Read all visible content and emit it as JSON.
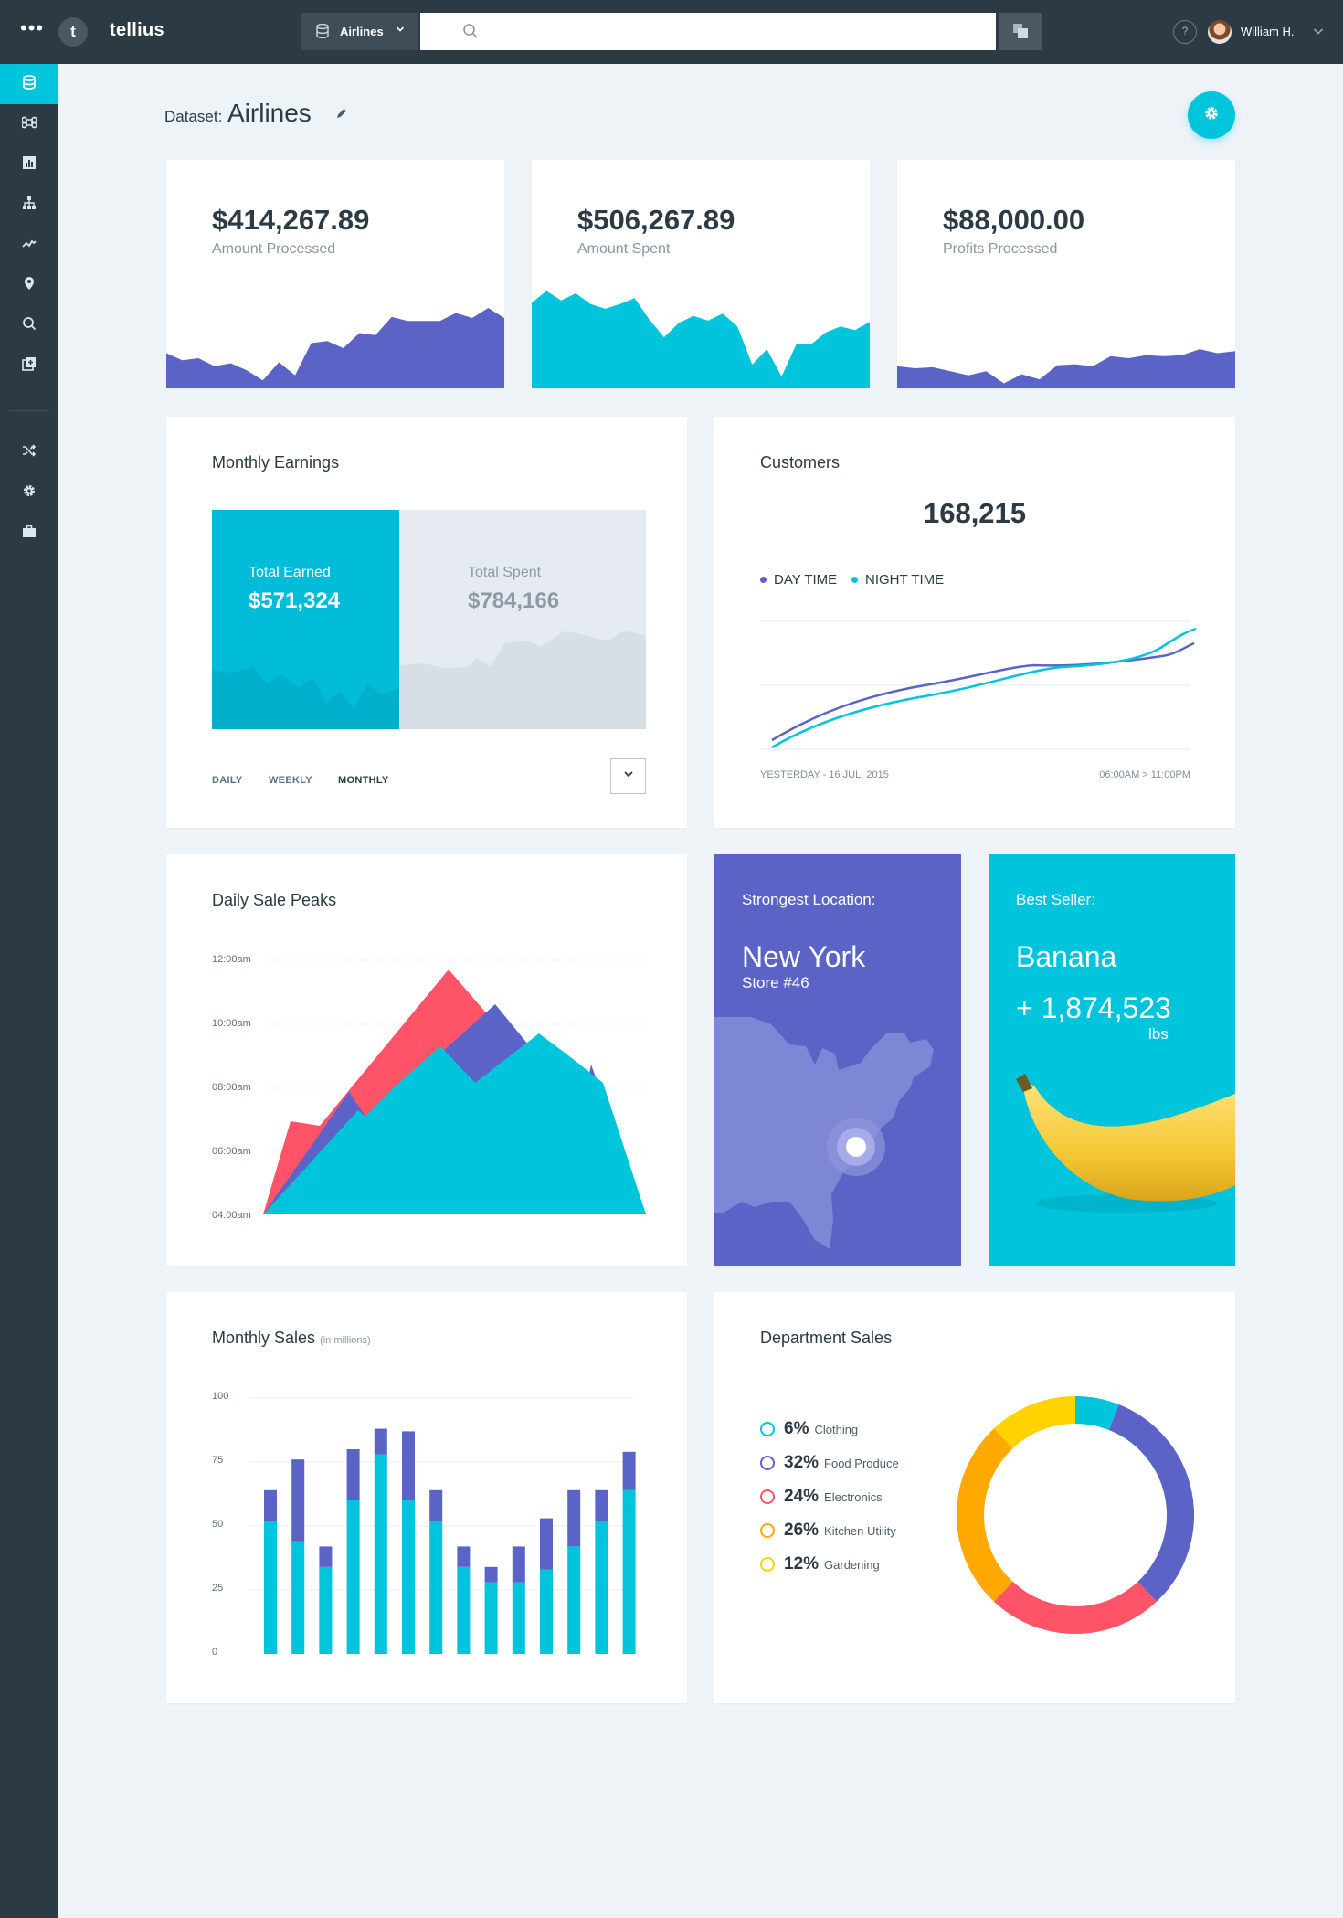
{
  "app": {
    "logo_letter": "t",
    "name": "tellius"
  },
  "topbar": {
    "menu_label": "•••",
    "dataset_select": "Airlines",
    "search_placeholder": "",
    "help_label": "?",
    "user_name": "William H."
  },
  "sidebar": {
    "items": [
      {
        "icon": "database-icon",
        "active": true
      },
      {
        "icon": "command-icon"
      },
      {
        "icon": "bar-chart-icon"
      },
      {
        "icon": "hierarchy-icon"
      },
      {
        "icon": "trend-icon"
      },
      {
        "icon": "location-pin-icon"
      },
      {
        "icon": "search-icon"
      },
      {
        "icon": "add-box-icon"
      },
      {
        "icon": "shuffle-icon"
      },
      {
        "icon": "gear-icon"
      },
      {
        "icon": "briefcase-icon"
      }
    ]
  },
  "header": {
    "dataset_label": "Dataset:",
    "dataset_name": "Airlines"
  },
  "kpis": [
    {
      "value": "$414,267.89",
      "label": "Amount Processed",
      "color": "#5b63c7",
      "trend": [
        0.35,
        0.28,
        0.3,
        0.22,
        0.25,
        0.18,
        0.08,
        0.26,
        0.13,
        0.45,
        0.47,
        0.4,
        0.55,
        0.53,
        0.71,
        0.67,
        0.67,
        0.67,
        0.75,
        0.7,
        0.8,
        0.7
      ]
    },
    {
      "value": "$506,267.89",
      "label": "Amount Spent",
      "color": "#00c3dc",
      "trend": [
        0.72,
        0.82,
        0.74,
        0.8,
        0.71,
        0.67,
        0.71,
        0.76,
        0.58,
        0.43,
        0.55,
        0.61,
        0.57,
        0.63,
        0.52,
        0.2,
        0.33,
        0.1,
        0.37,
        0.37,
        0.47,
        0.52,
        0.49,
        0.56
      ]
    },
    {
      "value": "$88,000.00",
      "label": "Profits Processed",
      "color": "#5b63c7",
      "trend": [
        0.22,
        0.2,
        0.21,
        0.17,
        0.13,
        0.17,
        0.05,
        0.14,
        0.09,
        0.23,
        0.24,
        0.22,
        0.32,
        0.3,
        0.33,
        0.32,
        0.33,
        0.39,
        0.35,
        0.37
      ]
    }
  ],
  "monthly_earnings": {
    "title": "Monthly Earnings",
    "earned_label": "Total Earned",
    "earned_value": "$571,324",
    "spent_label": "Total Spent",
    "spent_value": "$784,166",
    "tabs": [
      "DAILY",
      "WEEKLY",
      "MONTHLY"
    ],
    "active_tab": "MONTHLY"
  },
  "customers": {
    "title": "Customers",
    "total": "168,215",
    "legend": [
      {
        "name": "DAY TIME",
        "color": "#5b63c7"
      },
      {
        "name": "NIGHT TIME",
        "color": "#00c3dc"
      }
    ],
    "range_left": "YESTERDAY - 16 JUL, 2015",
    "range_right": "06:00AM > 11:00PM"
  },
  "daily_sale_peaks": {
    "title": "Daily Sale Peaks",
    "y_ticks": [
      "12:00am",
      "10:00am",
      "08:00am",
      "06:00am",
      "04:00am"
    ],
    "colors": [
      "#ff5368",
      "#5b63c7",
      "#00c3dc"
    ]
  },
  "strongest_location": {
    "title": "Strongest Location:",
    "city": "New York",
    "store": "Store #46",
    "color": "#5b63c7"
  },
  "best_seller": {
    "title": "Best Seller:",
    "product": "Banana",
    "quantity": "+ 1,874,523",
    "unit": "lbs",
    "color": "#00c3dc"
  },
  "monthly_sales": {
    "title": "Monthly Sales",
    "units": "(in millions)",
    "chart_data": {
      "type": "bar",
      "ylim": [
        0,
        100
      ],
      "y_ticks": [
        100,
        75,
        50,
        25,
        0
      ],
      "series": [
        {
          "color": "#00c3dc",
          "values": [
            52,
            44,
            34,
            60,
            78,
            60,
            52,
            34,
            28,
            28,
            33,
            42,
            52,
            64
          ]
        },
        {
          "color": "#5b63c7",
          "values": [
            12,
            32,
            8,
            20,
            10,
            27,
            12,
            8,
            6,
            14,
            20,
            22,
            12,
            15
          ]
        }
      ]
    }
  },
  "department_sales": {
    "title": "Department Sales",
    "chart_data": {
      "type": "pie",
      "slices": [
        {
          "pct": "6%",
          "name": "Clothing",
          "value": 6,
          "color": "#00c3dc"
        },
        {
          "pct": "32%",
          "name": "Food Produce",
          "value": 32,
          "color": "#5b63c7"
        },
        {
          "pct": "24%",
          "name": "Electronics",
          "value": 24,
          "color": "#ff5368"
        },
        {
          "pct": "26%",
          "name": "Kitchen Utility",
          "value": 26,
          "color": "#ffa800"
        },
        {
          "pct": "12%",
          "name": "Gardening",
          "value": 12,
          "color": "#ffd200"
        }
      ]
    }
  }
}
